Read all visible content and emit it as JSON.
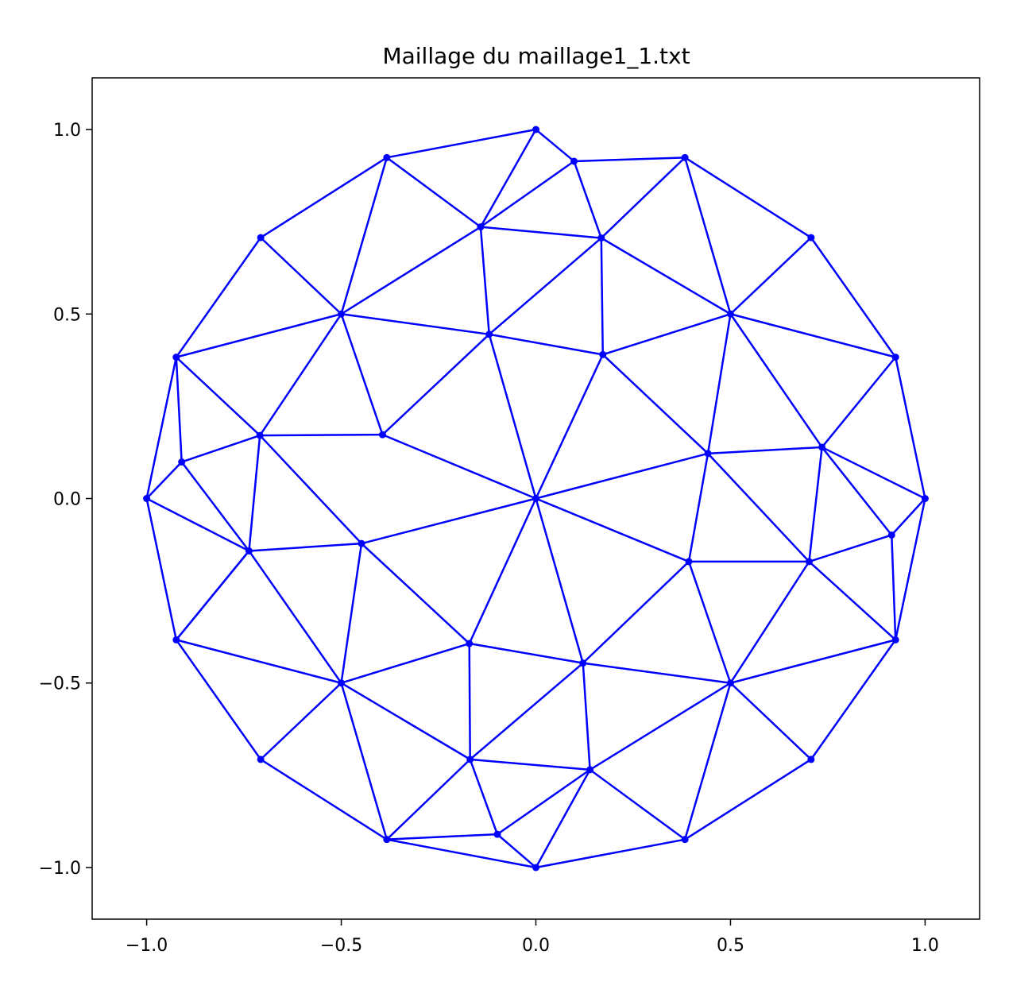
{
  "chart_data": {
    "type": "scatter",
    "title": "Maillage du maillage1_1.txt",
    "xlabel": "",
    "ylabel": "",
    "xlim": [
      -1.14,
      1.14
    ],
    "ylim": [
      -1.14,
      1.14
    ],
    "xticks": [
      -1.0,
      -0.5,
      0.0,
      0.5,
      1.0
    ],
    "yticks": [
      -1.0,
      -0.5,
      0.0,
      0.5,
      1.0
    ],
    "xtick_labels": [
      "−1.0",
      "−0.5",
      "0.0",
      "0.5",
      "1.0"
    ],
    "ytick_labels": [
      "−1.0",
      "−0.5",
      "0.0",
      "0.5",
      "1.0"
    ],
    "grid": false,
    "color": "#0000ff",
    "nodes": [
      [
        0.0,
        1.0
      ],
      [
        0.383,
        0.924
      ],
      [
        0.707,
        0.707
      ],
      [
        0.924,
        0.383
      ],
      [
        1.0,
        0.0
      ],
      [
        0.924,
        -0.383
      ],
      [
        0.707,
        -0.707
      ],
      [
        0.383,
        -0.924
      ],
      [
        0.0,
        -1.0
      ],
      [
        -0.383,
        -0.924
      ],
      [
        -0.707,
        -0.707
      ],
      [
        -0.924,
        -0.383
      ],
      [
        -1.0,
        0.0
      ],
      [
        -0.924,
        0.383
      ],
      [
        -0.707,
        0.707
      ],
      [
        -0.383,
        0.924
      ],
      [
        0.0,
        0.0
      ],
      [
        0.098,
        0.914
      ],
      [
        -0.142,
        0.736
      ],
      [
        0.168,
        0.706
      ],
      [
        -0.5,
        0.5
      ],
      [
        0.5,
        0.5
      ],
      [
        -0.12,
        0.445
      ],
      [
        0.172,
        0.39
      ],
      [
        -0.709,
        0.171
      ],
      [
        -0.394,
        0.173
      ],
      [
        0.442,
        0.122
      ],
      [
        0.735,
        0.139
      ],
      [
        -0.91,
        0.099
      ],
      [
        -0.737,
        -0.142
      ],
      [
        -0.448,
        -0.122
      ],
      [
        0.393,
        -0.171
      ],
      [
        0.702,
        -0.171
      ],
      [
        0.914,
        -0.099
      ],
      [
        -0.171,
        -0.393
      ],
      [
        0.121,
        -0.446
      ],
      [
        -0.5,
        -0.5
      ],
      [
        0.5,
        -0.5
      ],
      [
        -0.169,
        -0.707
      ],
      [
        0.139,
        -0.735
      ],
      [
        -0.099,
        -0.91
      ]
    ],
    "edges": [
      [
        0,
        15
      ],
      [
        0,
        17
      ],
      [
        0,
        18
      ],
      [
        17,
        1
      ],
      [
        1,
        2
      ],
      [
        2,
        3
      ],
      [
        3,
        4
      ],
      [
        4,
        5
      ],
      [
        5,
        6
      ],
      [
        6,
        7
      ],
      [
        7,
        8
      ],
      [
        8,
        9
      ],
      [
        9,
        10
      ],
      [
        10,
        11
      ],
      [
        11,
        12
      ],
      [
        12,
        13
      ],
      [
        13,
        14
      ],
      [
        14,
        15
      ],
      [
        17,
        18
      ],
      [
        17,
        19
      ],
      [
        18,
        19
      ],
      [
        1,
        19
      ],
      [
        1,
        21
      ],
      [
        2,
        21
      ],
      [
        3,
        21
      ],
      [
        3,
        27
      ],
      [
        4,
        27
      ],
      [
        4,
        33
      ],
      [
        5,
        33
      ],
      [
        5,
        32
      ],
      [
        5,
        37
      ],
      [
        6,
        37
      ],
      [
        7,
        37
      ],
      [
        7,
        39
      ],
      [
        8,
        39
      ],
      [
        8,
        40
      ],
      [
        9,
        40
      ],
      [
        9,
        38
      ],
      [
        9,
        36
      ],
      [
        10,
        36
      ],
      [
        11,
        36
      ],
      [
        11,
        29
      ],
      [
        12,
        29
      ],
      [
        12,
        28
      ],
      [
        13,
        28
      ],
      [
        13,
        24
      ],
      [
        13,
        20
      ],
      [
        14,
        20
      ],
      [
        15,
        20
      ],
      [
        15,
        18
      ],
      [
        18,
        20
      ],
      [
        18,
        22
      ],
      [
        19,
        22
      ],
      [
        19,
        23
      ],
      [
        19,
        21
      ],
      [
        20,
        22
      ],
      [
        20,
        24
      ],
      [
        20,
        25
      ],
      [
        22,
        25
      ],
      [
        22,
        16
      ],
      [
        22,
        23
      ],
      [
        23,
        16
      ],
      [
        23,
        26
      ],
      [
        23,
        21
      ],
      [
        21,
        26
      ],
      [
        21,
        27
      ],
      [
        26,
        27
      ],
      [
        26,
        16
      ],
      [
        26,
        31
      ],
      [
        26,
        32
      ],
      [
        27,
        32
      ],
      [
        27,
        33
      ],
      [
        32,
        33
      ],
      [
        31,
        32
      ],
      [
        31,
        16
      ],
      [
        31,
        35
      ],
      [
        31,
        37
      ],
      [
        32,
        37
      ],
      [
        16,
        25
      ],
      [
        16,
        30
      ],
      [
        16,
        34
      ],
      [
        16,
        35
      ],
      [
        24,
        25
      ],
      [
        24,
        28
      ],
      [
        24,
        29
      ],
      [
        24,
        30
      ],
      [
        28,
        29
      ],
      [
        29,
        30
      ],
      [
        29,
        36
      ],
      [
        29,
        11
      ],
      [
        30,
        34
      ],
      [
        30,
        36
      ],
      [
        34,
        35
      ],
      [
        34,
        38
      ],
      [
        34,
        36
      ],
      [
        35,
        37
      ],
      [
        35,
        39
      ],
      [
        35,
        38
      ],
      [
        36,
        38
      ],
      [
        38,
        39
      ],
      [
        38,
        40
      ],
      [
        39,
        40
      ],
      [
        39,
        37
      ]
    ]
  }
}
